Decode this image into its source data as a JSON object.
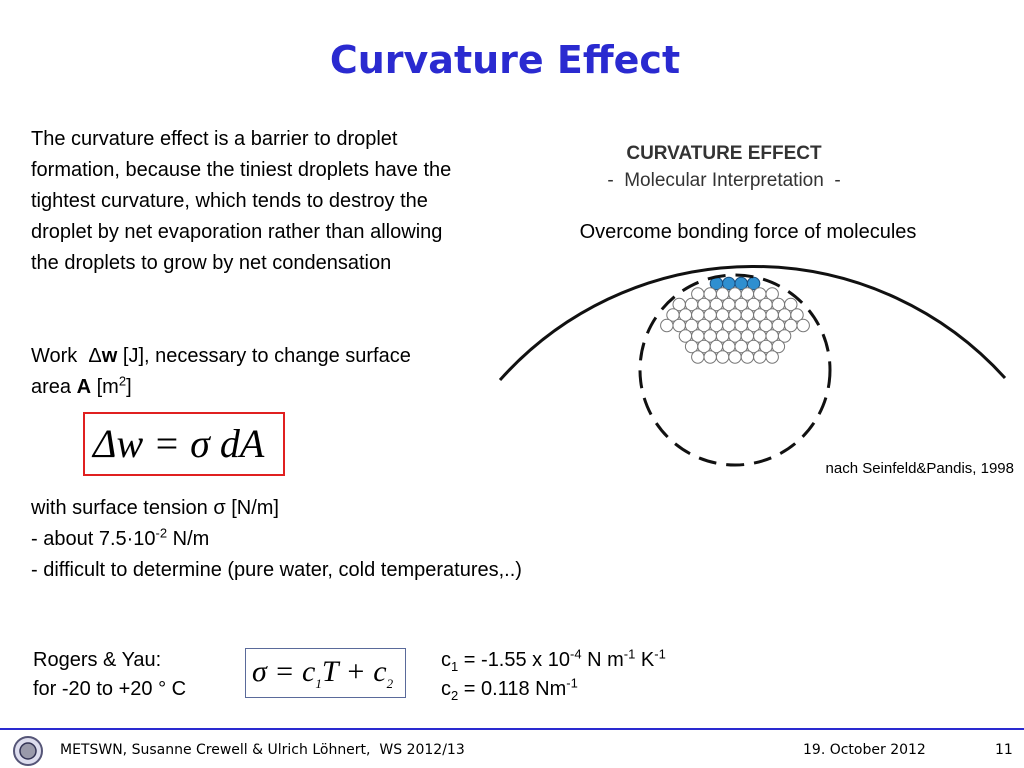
{
  "title": "Curvature Effect",
  "intro": "The curvature effect is a barrier to droplet formation, because the tiniest droplets have the tightest curvature, which tends to destroy the droplet by net evaporation rather than allowing the droplets to grow by net condensation",
  "work": [
    {
      "text": "Work  Δ",
      "pos": "base"
    },
    {
      "text": "w",
      "pos": "bold"
    },
    {
      "text": " [J], necessary to change surface area ",
      "pos": "base"
    },
    {
      "text": "A",
      "pos": "bold"
    },
    {
      "text": " [m",
      "pos": "base"
    },
    {
      "text": "2",
      "pos": "sup"
    },
    {
      "text": "]",
      "pos": "base"
    }
  ],
  "formula1": [
    {
      "text": "Δ",
      "pos": "base"
    },
    {
      "text": "w",
      "pos": "base"
    },
    {
      "text": " = ",
      "pos": "base"
    },
    {
      "text": "σ",
      "pos": "base"
    },
    {
      "text": " dA",
      "pos": "base"
    }
  ],
  "tension": {
    "line1": "with surface tension σ [N/m]",
    "line2": [
      {
        "text": "- about 7.5·10",
        "pos": "base"
      },
      {
        "text": "-2",
        "pos": "sup"
      },
      {
        "text": " N/m",
        "pos": "base"
      }
    ],
    "line3": "- difficult to determine (pure water, cold temperatures,..)"
  },
  "figure": {
    "title": "CURVATURE EFFECT",
    "subtitle": "-  Molecular Interpretation  -",
    "caption": "Overcome bonding force of molecules",
    "credit": "nach Seinfeld&Pandis, 1998"
  },
  "rogers": {
    "label": "Rogers & Yau:",
    "range": "for -20 to +20 ° C",
    "formula": [
      {
        "text": "σ = c",
        "pos": "base"
      },
      {
        "text": "1",
        "pos": "sub"
      },
      {
        "text": "T + c",
        "pos": "base"
      },
      {
        "text": "2",
        "pos": "sub"
      }
    ],
    "c1": [
      {
        "text": "c",
        "pos": "base"
      },
      {
        "text": "1",
        "pos": "sub"
      },
      {
        "text": " = -1.55 x 10",
        "pos": "base"
      },
      {
        "text": "-4",
        "pos": "sup"
      },
      {
        "text": " N m",
        "pos": "base"
      },
      {
        "text": "-1",
        "pos": "sup"
      },
      {
        "text": " K",
        "pos": "base"
      },
      {
        "text": "-1",
        "pos": "sup"
      }
    ],
    "c2": [
      {
        "text": "c",
        "pos": "base"
      },
      {
        "text": "2",
        "pos": "sub"
      },
      {
        "text": " = 0.118 Nm",
        "pos": "base"
      },
      {
        "text": "-1",
        "pos": "sup"
      }
    ]
  },
  "footer": {
    "authors": "METSWN, Susanne Crewell & Ulrich Löhnert,  WS 2012/13",
    "date": "19. October 2012",
    "page": "11"
  }
}
